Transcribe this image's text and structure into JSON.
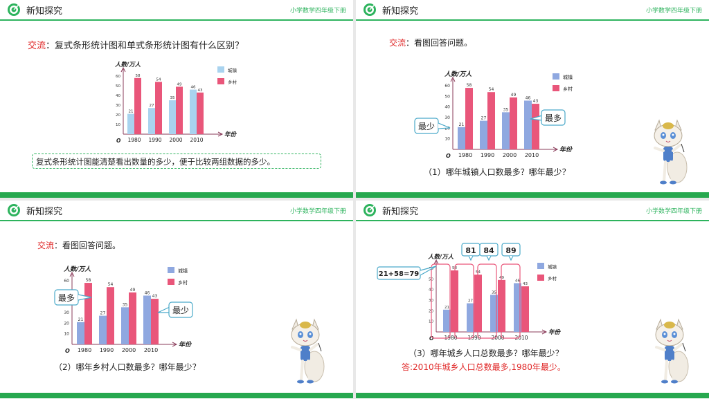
{
  "header": {
    "title": "新知探究",
    "subtitle": "小学数学四年级下册"
  },
  "colors": {
    "green": "#2db35d",
    "blue": "#8fa8e0",
    "blue_s1": "#a9d3ef",
    "pink": "#e9567a",
    "red": "#e02828"
  },
  "slide1": {
    "question_label": "交流",
    "question_text": "：复式条形统计图和单式条形统计图有什么区别？",
    "conclusion": "复式条形统计图能清楚看出数量的多少，便于比较两组数据的多少。"
  },
  "slide2": {
    "question_label": "交流",
    "question_text": "：看图回答问题。",
    "callout_min": "最少",
    "callout_max": "最多",
    "question": "（1）哪年城镇人口数最多？哪年最少？"
  },
  "slide3": {
    "question_label": "交流",
    "question_text": "：看图回答问题。",
    "callout_max": "最多",
    "callout_min": "最少",
    "question": "（2）哪年乡村人口数最多？哪年最少？"
  },
  "slide4": {
    "sum_label": "21+58=79",
    "sums": [
      "81",
      "84",
      "89"
    ],
    "question": "（3）哪年城乡人口总数最多？哪年最少？",
    "answer": "答:2010年城乡人口总数最多,1980年最少。"
  },
  "chart_data": {
    "type": "bar",
    "categories": [
      "1980",
      "1990",
      "2000",
      "2010"
    ],
    "series": [
      {
        "name": "城镇",
        "values": [
          21,
          27,
          35,
          46
        ]
      },
      {
        "name": "乡村",
        "values": [
          58,
          54,
          49,
          43
        ]
      }
    ],
    "ylabel": "人数/万人",
    "xlabel": "年份",
    "origin": "O",
    "yticks": [
      10,
      20,
      30,
      40,
      50,
      60
    ],
    "ylim": [
      0,
      60
    ],
    "legend": "right"
  }
}
